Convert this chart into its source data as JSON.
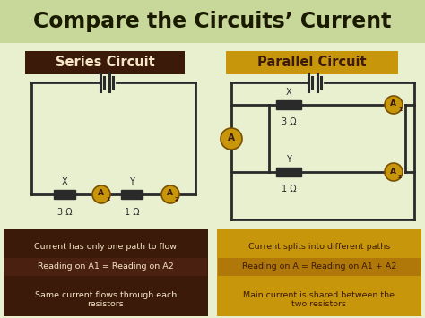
{
  "title": "Compare the Circuits’ Current",
  "title_bg": "#c8d89a",
  "title_color": "#1a1a00",
  "main_bg": "#e8f0d0",
  "series_label": "Series Circuit",
  "series_label_bg": "#3b1a0a",
  "series_label_color": "#f5e6c8",
  "parallel_label": "Parallel Circuit",
  "parallel_label_bg": "#c8960a",
  "parallel_label_color": "#3b1a0a",
  "ammeter_color": "#c8960a",
  "ammeter_text_color": "#3b1a0a",
  "resistor_color": "#2a2a2a",
  "wire_color": "#2a2a2a",
  "series_facts": [
    "Current has only one path to flow",
    "Reading on A1 = Reading on A2",
    "Same current flows through each\nresistors"
  ],
  "parallel_facts": [
    "Current splits into different paths",
    "Reading on A = Reading on A1 + A2",
    "Main current is shared between the\ntwo resistors"
  ],
  "fact_bg_dark": "#3b1a0a",
  "fact_bg_dark2": "#4a2010",
  "fact_bg_gold": "#c8960a",
  "fact_bg_gold2": "#b07808",
  "fact_text_light": "#f5e6c8",
  "fact_text_dark": "#3b1a0a"
}
